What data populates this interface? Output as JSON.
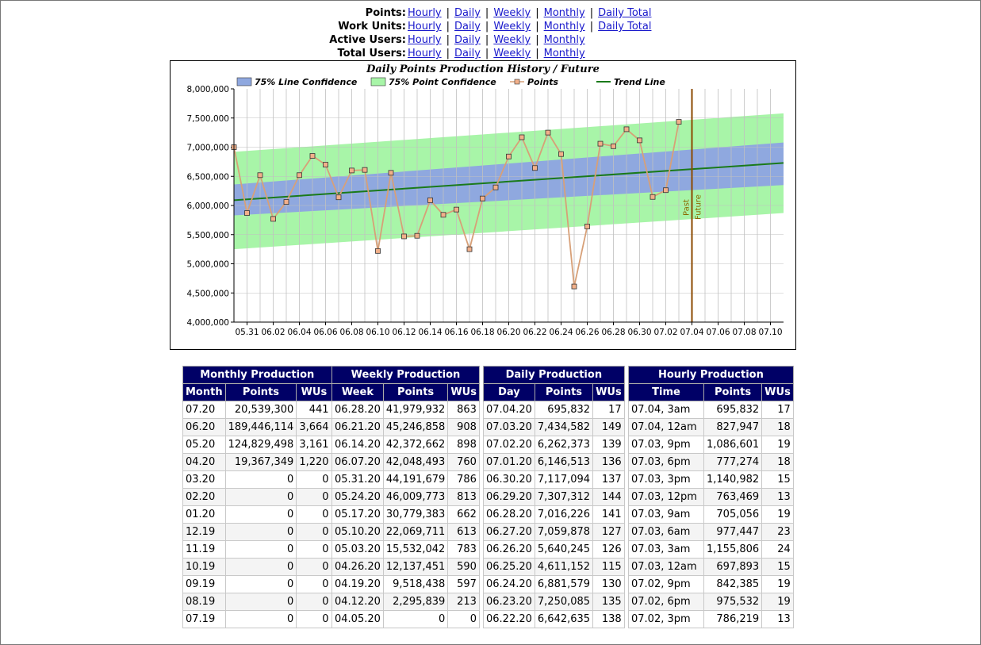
{
  "nav": [
    {
      "label": "Points:",
      "links": [
        "Hourly",
        "Daily",
        "Weekly",
        "Monthly",
        "Daily Total"
      ]
    },
    {
      "label": "Work Units:",
      "links": [
        "Hourly",
        "Daily",
        "Weekly",
        "Monthly",
        "Daily Total"
      ]
    },
    {
      "label": "Active Users:",
      "links": [
        "Hourly",
        "Daily",
        "Weekly",
        "Monthly"
      ]
    },
    {
      "label": "Total Users:",
      "links": [
        "Hourly",
        "Daily",
        "Weekly",
        "Monthly"
      ]
    }
  ],
  "chart_data": {
    "type": "line",
    "title": "Daily Points Production History / Future",
    "legend": [
      "75% Line Confidence",
      "75% Point Confidence",
      "Points",
      "Trend Line"
    ],
    "legend_placement": "top",
    "colors": {
      "line_conf": "#8fa8df",
      "point_conf": "#a8f5a8",
      "points": "#d7a078",
      "trend": "#1a7a1a",
      "marker": "#8b4a00"
    },
    "y_ticks": [
      "8,000,000",
      "7,500,000",
      "7,000,000",
      "6,500,000",
      "6,000,000",
      "5,500,000",
      "5,000,000",
      "4,500,000",
      "4,000,000"
    ],
    "ylim": [
      4000000,
      8000000
    ],
    "x_tick_labels": [
      "05.31",
      "06.02",
      "06.04",
      "06.06",
      "06.08",
      "06.10",
      "06.12",
      "06.14",
      "06.16",
      "06.18",
      "06.20",
      "06.22",
      "06.24",
      "06.26",
      "06.28",
      "06.30",
      "07.02",
      "07.04",
      "07.06",
      "07.08",
      "07.10"
    ],
    "x_range_days": [
      "05.30",
      "07.11"
    ],
    "points": [
      7000000,
      5870000,
      6520000,
      5770000,
      6060000,
      6520000,
      6850000,
      6700000,
      6140000,
      6600000,
      6610000,
      5220000,
      6560000,
      5470000,
      5480000,
      6090000,
      5840000,
      5930000,
      5250000,
      6120000,
      6310000,
      6840000,
      7170000,
      6642635,
      7250085,
      6881579,
      4611152,
      5640245,
      7059878,
      7016226,
      7307312,
      7117094,
      6146513,
      6262373,
      7434582
    ],
    "trend": {
      "start": 6090000,
      "end": 6730000
    },
    "line_conf": {
      "start_low": 5830000,
      "start_high": 6360000,
      "end_low": 6350000,
      "end_high": 7080000
    },
    "point_conf": {
      "start_low": 5250000,
      "start_high": 6920000,
      "end_low": 5870000,
      "end_high": 7580000
    },
    "divider_labels": [
      "Past",
      "Future"
    ]
  },
  "tables": {
    "monthly": {
      "title": "Monthly Production",
      "headers": [
        "Month",
        "Points",
        "WUs"
      ],
      "rows": [
        [
          "07.20",
          "20,539,300",
          "441"
        ],
        [
          "06.20",
          "189,446,114",
          "3,664"
        ],
        [
          "05.20",
          "124,829,498",
          "3,161"
        ],
        [
          "04.20",
          "19,367,349",
          "1,220"
        ],
        [
          "03.20",
          "0",
          "0"
        ],
        [
          "02.20",
          "0",
          "0"
        ],
        [
          "01.20",
          "0",
          "0"
        ],
        [
          "12.19",
          "0",
          "0"
        ],
        [
          "11.19",
          "0",
          "0"
        ],
        [
          "10.19",
          "0",
          "0"
        ],
        [
          "09.19",
          "0",
          "0"
        ],
        [
          "08.19",
          "0",
          "0"
        ],
        [
          "07.19",
          "0",
          "0"
        ]
      ]
    },
    "weekly": {
      "title": "Weekly Production",
      "headers": [
        "Week",
        "Points",
        "WUs"
      ],
      "rows": [
        [
          "06.28.20",
          "41,979,932",
          "863"
        ],
        [
          "06.21.20",
          "45,246,858",
          "908"
        ],
        [
          "06.14.20",
          "42,372,662",
          "898"
        ],
        [
          "06.07.20",
          "42,048,493",
          "760"
        ],
        [
          "05.31.20",
          "44,191,679",
          "786"
        ],
        [
          "05.24.20",
          "46,009,773",
          "813"
        ],
        [
          "05.17.20",
          "30,779,383",
          "662"
        ],
        [
          "05.10.20",
          "22,069,711",
          "613"
        ],
        [
          "05.03.20",
          "15,532,042",
          "783"
        ],
        [
          "04.26.20",
          "12,137,451",
          "590"
        ],
        [
          "04.19.20",
          "9,518,438",
          "597"
        ],
        [
          "04.12.20",
          "2,295,839",
          "213"
        ],
        [
          "04.05.20",
          "0",
          "0"
        ]
      ]
    },
    "daily": {
      "title": "Daily Production",
      "headers": [
        "Day",
        "Points",
        "WUs"
      ],
      "rows": [
        [
          "07.04.20",
          "695,832",
          "17"
        ],
        [
          "07.03.20",
          "7,434,582",
          "149"
        ],
        [
          "07.02.20",
          "6,262,373",
          "139"
        ],
        [
          "07.01.20",
          "6,146,513",
          "136"
        ],
        [
          "06.30.20",
          "7,117,094",
          "137"
        ],
        [
          "06.29.20",
          "7,307,312",
          "144"
        ],
        [
          "06.28.20",
          "7,016,226",
          "141"
        ],
        [
          "06.27.20",
          "7,059,878",
          "127"
        ],
        [
          "06.26.20",
          "5,640,245",
          "126"
        ],
        [
          "06.25.20",
          "4,611,152",
          "115"
        ],
        [
          "06.24.20",
          "6,881,579",
          "130"
        ],
        [
          "06.23.20",
          "7,250,085",
          "135"
        ],
        [
          "06.22.20",
          "6,642,635",
          "138"
        ]
      ]
    },
    "hourly": {
      "title": "Hourly Production",
      "headers": [
        "Time",
        "Points",
        "WUs"
      ],
      "rows": [
        [
          "07.04, 3am",
          "695,832",
          "17"
        ],
        [
          "07.04, 12am",
          "827,947",
          "18"
        ],
        [
          "07.03, 9pm",
          "1,086,601",
          "19"
        ],
        [
          "07.03, 6pm",
          "777,274",
          "18"
        ],
        [
          "07.03, 3pm",
          "1,140,982",
          "15"
        ],
        [
          "07.03, 12pm",
          "763,469",
          "13"
        ],
        [
          "07.03, 9am",
          "705,056",
          "19"
        ],
        [
          "07.03, 6am",
          "977,447",
          "23"
        ],
        [
          "07.03, 3am",
          "1,155,806",
          "24"
        ],
        [
          "07.03, 12am",
          "697,893",
          "15"
        ],
        [
          "07.02, 9pm",
          "842,385",
          "19"
        ],
        [
          "07.02, 6pm",
          "975,532",
          "19"
        ],
        [
          "07.02, 3pm",
          "786,219",
          "13"
        ]
      ]
    }
  }
}
